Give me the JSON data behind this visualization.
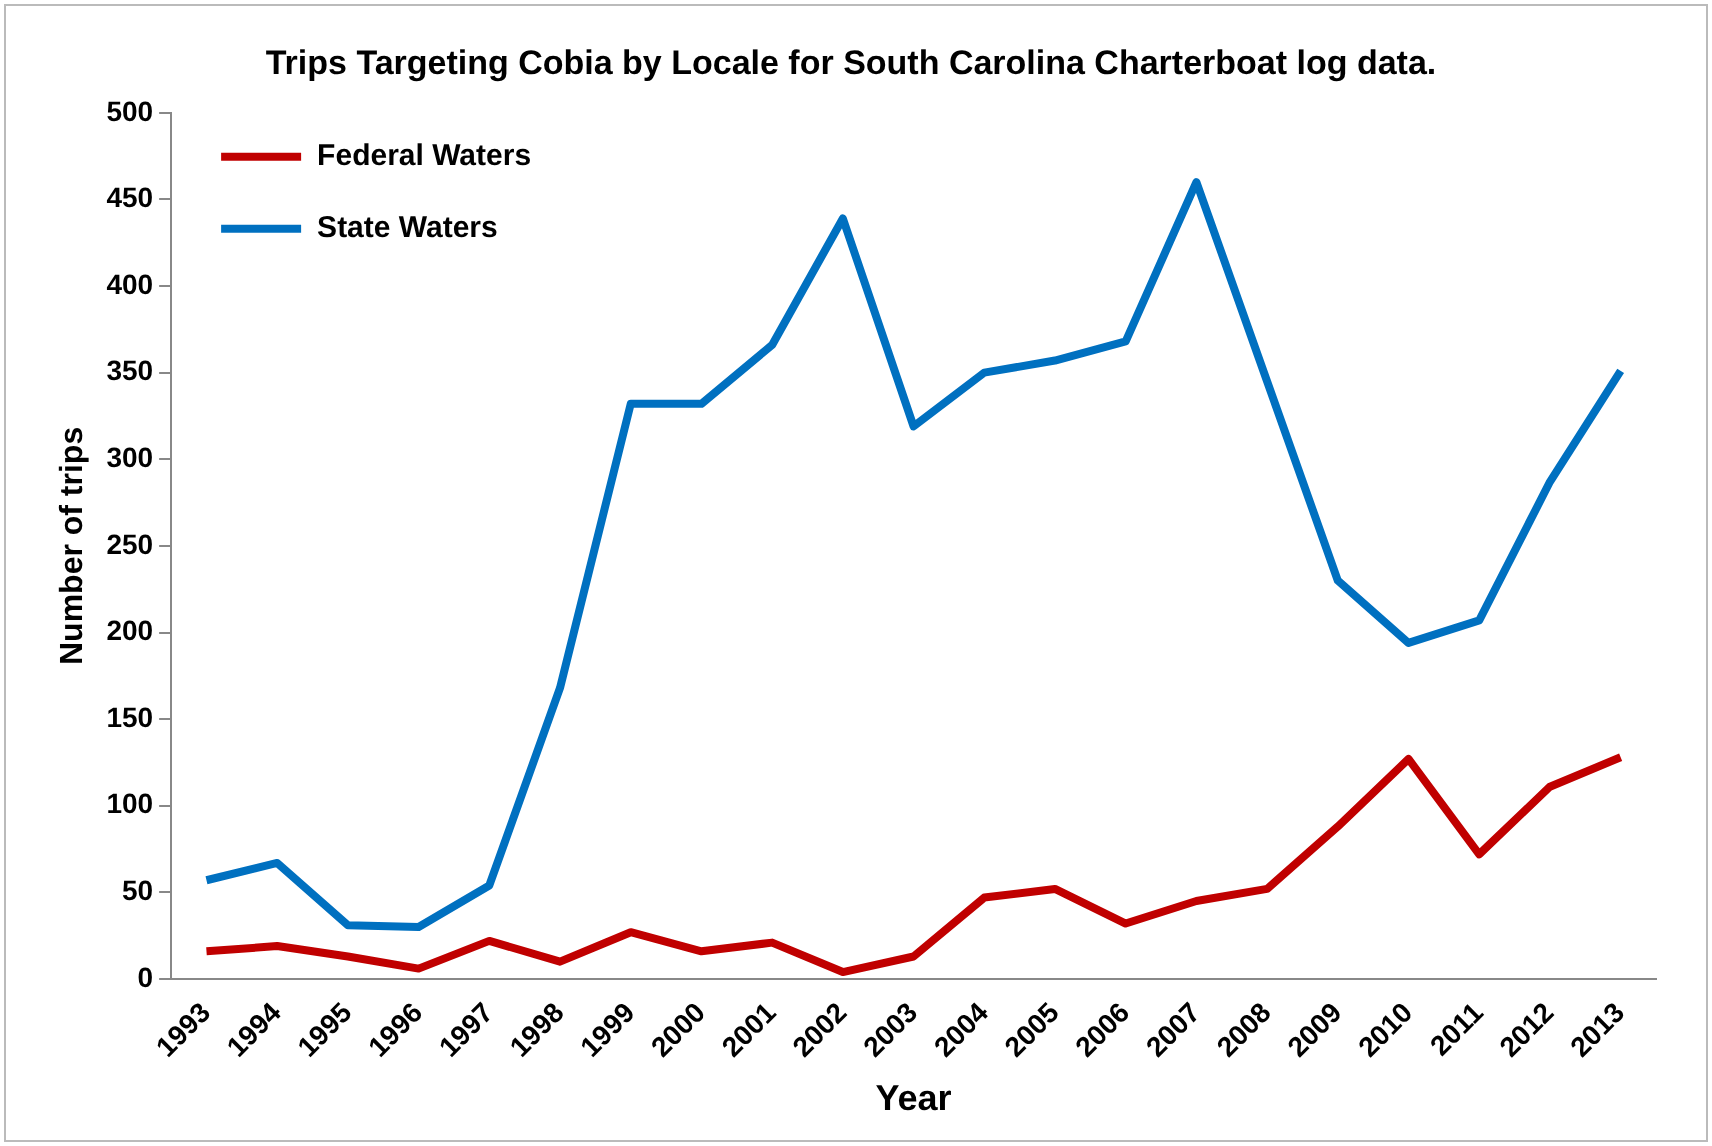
{
  "chart_data": {
    "type": "line",
    "title": "Trips Targeting Cobia by Locale for South Carolina Charterboat log data.",
    "xlabel": "Year",
    "ylabel": "Number of trips",
    "categories": [
      "1993",
      "1994",
      "1995",
      "1996",
      "1997",
      "1998",
      "1999",
      "2000",
      "2001",
      "2002",
      "2003",
      "2004",
      "2005",
      "2006",
      "2007",
      "2008",
      "2009",
      "2010",
      "2011",
      "2012",
      "2013"
    ],
    "series": [
      {
        "name": "Federal Waters",
        "color": "#c00000",
        "values": [
          16,
          19,
          13,
          6,
          22,
          10,
          27,
          16,
          21,
          4,
          13,
          47,
          52,
          32,
          45,
          52,
          88,
          127,
          72,
          111,
          128
        ]
      },
      {
        "name": "State Waters",
        "color": "#0070c0",
        "values": [
          57,
          67,
          31,
          30,
          54,
          168,
          332,
          332,
          366,
          439,
          319,
          350,
          357,
          368,
          460,
          345,
          230,
          194,
          207,
          287,
          351
        ]
      }
    ],
    "ylim": [
      0,
      500
    ],
    "yticks": [
      0,
      50,
      100,
      150,
      200,
      250,
      300,
      350,
      400,
      450,
      500
    ],
    "grid": false,
    "legend": "top left",
    "marker": "none",
    "line_style": "solid"
  }
}
